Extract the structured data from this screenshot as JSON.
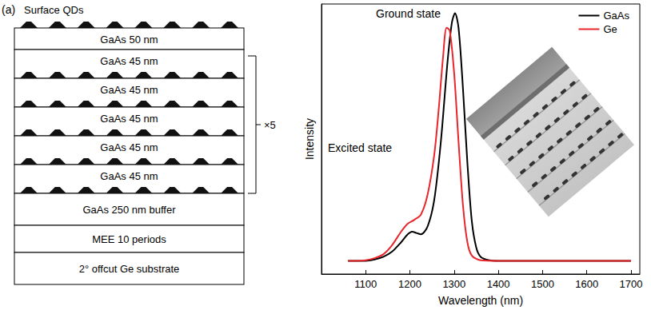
{
  "panel_label": "(a)",
  "diagram": {
    "top_label": "Surface QDs",
    "layers": [
      "GaAs 50 nm",
      "GaAs 45 nm",
      "GaAs 45 nm",
      "GaAs 45 nm",
      "GaAs 45 nm",
      "GaAs 45 nm",
      "GaAs 250 nm buffer",
      "MEE 10 periods",
      "2° offcut Ge substrate"
    ],
    "repeat_label": "×5"
  },
  "chart_data": {
    "type": "line",
    "x_label": "Wavelength (nm)",
    "y_label": "Intensity",
    "xlim": [
      1000,
      1720
    ],
    "xticks": [
      1100,
      1200,
      1300,
      1400,
      1500,
      1600,
      1700
    ],
    "ylim": [
      0,
      1.02
    ],
    "tick_labels": "x",
    "grid": false,
    "legend": "upper right",
    "annotations": [
      "Ground state",
      "Excited state"
    ],
    "series": [
      {
        "name": "GaAs",
        "color": "#000000",
        "x": [
          1060,
          1080,
          1100,
          1120,
          1140,
          1160,
          1180,
          1195,
          1205,
          1215,
          1225,
          1240,
          1255,
          1270,
          1285,
          1295,
          1302,
          1310,
          1320,
          1330,
          1340,
          1350,
          1360,
          1380,
          1400,
          1500,
          1600,
          1700
        ],
        "values": [
          0.05,
          0.05,
          0.05,
          0.055,
          0.065,
          0.085,
          0.12,
          0.15,
          0.16,
          0.155,
          0.15,
          0.18,
          0.28,
          0.5,
          0.8,
          0.95,
          0.985,
          0.93,
          0.7,
          0.42,
          0.2,
          0.1,
          0.065,
          0.052,
          0.05,
          0.05,
          0.05,
          0.05
        ]
      },
      {
        "name": "Ge",
        "color": "#e8262b",
        "x": [
          1060,
          1080,
          1100,
          1120,
          1140,
          1160,
          1180,
          1195,
          1210,
          1225,
          1240,
          1255,
          1265,
          1275,
          1283,
          1290,
          1300,
          1310,
          1320,
          1330,
          1340,
          1360,
          1400,
          1500,
          1600,
          1700
        ],
        "values": [
          0.05,
          0.05,
          0.052,
          0.06,
          0.075,
          0.11,
          0.16,
          0.19,
          0.205,
          0.225,
          0.3,
          0.45,
          0.62,
          0.82,
          0.93,
          0.92,
          0.76,
          0.5,
          0.26,
          0.12,
          0.07,
          0.052,
          0.05,
          0.05,
          0.05,
          0.05
        ]
      }
    ]
  }
}
